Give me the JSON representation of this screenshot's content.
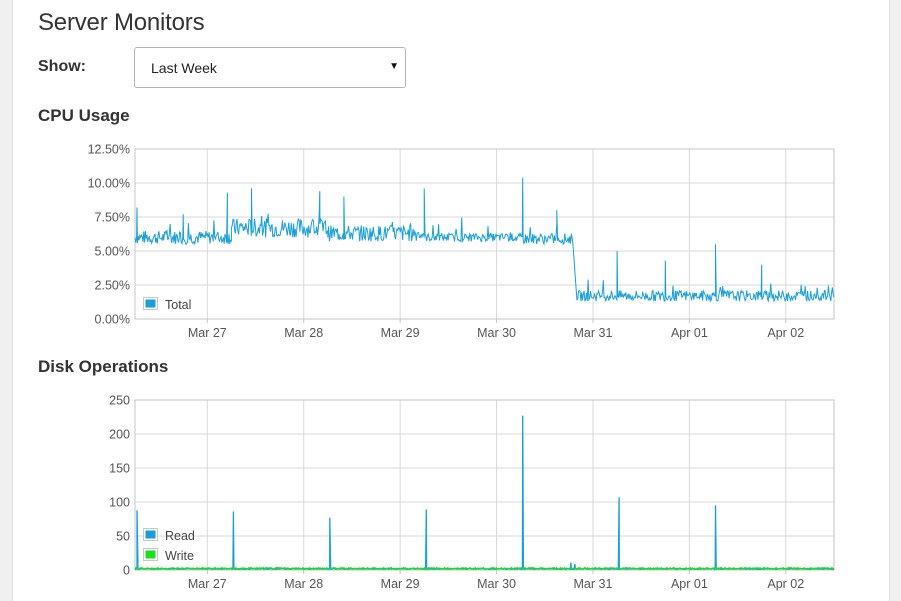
{
  "page": {
    "title": "Server Monitors"
  },
  "filter": {
    "label": "Show:",
    "selected": "Last Week",
    "arrow_icon": "dropdown-arrow-icon"
  },
  "colors": {
    "read": "#1a9fd8",
    "write": "#19e019",
    "total": "#1a9fd8",
    "grid": "#d9d9d9",
    "axis": "#c6c6c6"
  },
  "chart_data": [
    {
      "id": "cpu",
      "title": "CPU Usage",
      "type": "line",
      "x_domain": [
        "2015-03-26 06:00",
        "2015-04-02 12:00"
      ],
      "x_ticks": [
        "Mar 27",
        "Mar 28",
        "Mar 29",
        "Mar 30",
        "Mar 31",
        "Apr 01",
        "Apr 02"
      ],
      "ylim": [
        0,
        12.5
      ],
      "y_ticks": [
        "0.00%",
        "2.50%",
        "5.00%",
        "7.50%",
        "10.00%",
        "12.50%"
      ],
      "grid": true,
      "legend": {
        "placement": "bottom-left"
      },
      "series": [
        {
          "name": "Total",
          "color": "#1a9fd8",
          "segments": [
            {
              "from": "2015-03-26 06:00",
              "to": "2015-03-27 06:00",
              "baseline": 6.0,
              "noise": 0.5
            },
            {
              "from": "2015-03-27 06:00",
              "to": "2015-03-28 06:00",
              "baseline": 6.7,
              "noise": 0.7
            },
            {
              "from": "2015-03-28 06:00",
              "to": "2015-03-29 06:00",
              "baseline": 6.3,
              "noise": 0.6
            },
            {
              "from": "2015-03-29 06:00",
              "to": "2015-03-30 06:00",
              "baseline": 6.0,
              "noise": 0.3
            },
            {
              "from": "2015-03-30 06:00",
              "to": "2015-03-30 19:00",
              "baseline": 5.9,
              "noise": 0.4
            },
            {
              "from": "2015-03-30 20:00",
              "to": "2015-04-02 12:00",
              "baseline": 1.7,
              "noise": 0.4
            }
          ],
          "peaks": [
            {
              "x": "2015-03-26 06:30",
              "y": 8.2
            },
            {
              "x": "2015-03-26 18:00",
              "y": 7.7
            },
            {
              "x": "2015-03-27 05:00",
              "y": 9.3
            },
            {
              "x": "2015-03-27 11:00",
              "y": 9.6
            },
            {
              "x": "2015-03-28 04:00",
              "y": 9.4
            },
            {
              "x": "2015-03-28 10:00",
              "y": 9.0
            },
            {
              "x": "2015-03-29 06:00",
              "y": 9.6
            },
            {
              "x": "2015-03-30 06:30",
              "y": 10.4
            },
            {
              "x": "2015-03-30 15:00",
              "y": 8.0
            },
            {
              "x": "2015-03-31 06:00",
              "y": 5.0
            },
            {
              "x": "2015-03-31 18:00",
              "y": 4.3
            },
            {
              "x": "2015-04-01 06:30",
              "y": 5.5
            },
            {
              "x": "2015-04-01 18:00",
              "y": 4.0
            }
          ]
        }
      ]
    },
    {
      "id": "disk",
      "title": "Disk Operations",
      "type": "line",
      "x_domain": [
        "2015-03-26 06:00",
        "2015-04-02 12:00"
      ],
      "x_ticks": [
        "Mar 27",
        "Mar 28",
        "Mar 29",
        "Mar 30",
        "Mar 31",
        "Apr 01",
        "Apr 02"
      ],
      "ylim": [
        0,
        250
      ],
      "y_ticks": [
        "0",
        "50",
        "100",
        "150",
        "200",
        "250"
      ],
      "grid": true,
      "legend": {
        "placement": "bottom-left"
      },
      "series": [
        {
          "name": "Read",
          "color": "#1a9fd8",
          "baseline": 1,
          "spikes": [
            {
              "x": "2015-03-26 06:30",
              "y": 88
            },
            {
              "x": "2015-03-27 06:30",
              "y": 86
            },
            {
              "x": "2015-03-28 06:30",
              "y": 77
            },
            {
              "x": "2015-03-29 06:30",
              "y": 89
            },
            {
              "x": "2015-03-30 06:30",
              "y": 227
            },
            {
              "x": "2015-03-30 18:30",
              "y": 11
            },
            {
              "x": "2015-03-30 19:30",
              "y": 9
            },
            {
              "x": "2015-03-31 06:30",
              "y": 107
            },
            {
              "x": "2015-04-01 06:30",
              "y": 95
            }
          ]
        },
        {
          "name": "Write",
          "color": "#19e019",
          "baseline": 2
        }
      ]
    }
  ]
}
